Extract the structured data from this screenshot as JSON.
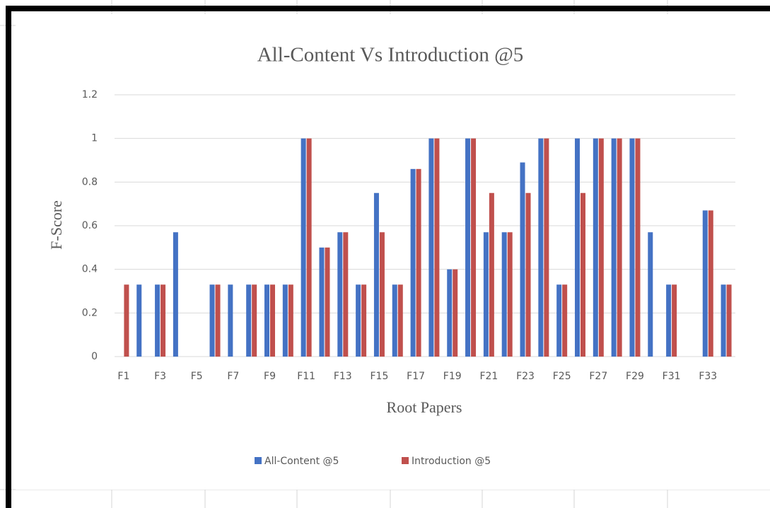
{
  "chart_data": {
    "type": "bar",
    "title": "All-Content Vs Introduction @5",
    "x_label": "Root Papers",
    "y_label": "F-Score",
    "categories": [
      "F1",
      null,
      "F3",
      null,
      "F5",
      null,
      "F7",
      null,
      "F9",
      null,
      "F11",
      null,
      "F13",
      null,
      "F15",
      null,
      "F17",
      null,
      "F19",
      null,
      "F21",
      null,
      "F23",
      null,
      "F25",
      null,
      "F27",
      null,
      "F29",
      null,
      "F31",
      null,
      "F33",
      null
    ],
    "series": [
      {
        "name": "All-Content @5",
        "color": "#4472c4",
        "values": [
          0,
          0.33,
          0.33,
          0.57,
          0,
          0.33,
          0.33,
          0.33,
          0.33,
          0.33,
          1,
          0.5,
          0.57,
          0.33,
          0.75,
          0.33,
          0.86,
          1,
          0.4,
          1,
          0.57,
          0.57,
          0.89,
          1,
          0.33,
          1,
          1,
          1,
          1,
          0.57,
          0.33,
          0,
          0.67,
          0.33
        ]
      },
      {
        "name": "Introduction @5",
        "color": "#c0504d",
        "values": [
          0.33,
          0,
          0.33,
          0,
          0,
          0.33,
          0,
          0.33,
          0.33,
          0.33,
          1,
          0.5,
          0.57,
          0.33,
          0.57,
          0.33,
          0.86,
          1,
          0.4,
          1,
          0.75,
          0.57,
          0.75,
          1,
          0.33,
          0.75,
          1,
          1,
          1,
          0,
          0.33,
          0,
          0.67,
          0.33
        ]
      }
    ],
    "ylim": [
      0,
      1.2
    ],
    "yticks": [
      0,
      0.2,
      0.4,
      0.6,
      0.8,
      1,
      1.2
    ],
    "grid": true,
    "legend": "bottom"
  }
}
